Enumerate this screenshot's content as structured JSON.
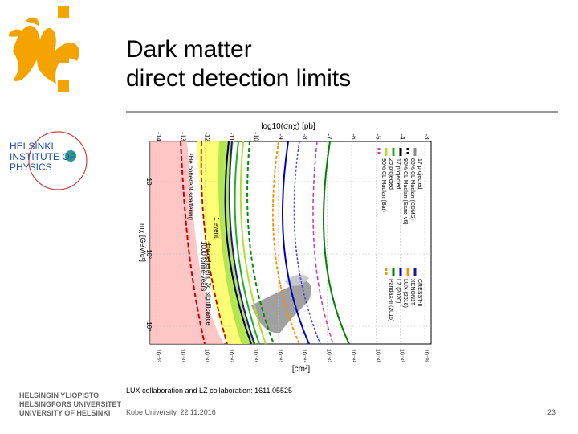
{
  "slide": {
    "title_line1": "Dark matter",
    "title_line2": "direct detection limits",
    "citation": "LUX collaboration and LZ collaboration: 1611.05525",
    "footer_left": "Kobe University, 22.11.2016",
    "page_number": "23"
  },
  "logos": {
    "flame_color": "#f5a300",
    "physics_line1": "HELSINKI",
    "physics_line2": "INSTITUTE OF",
    "physics_line3": "PHYSICS",
    "physics_color": "#1f4e9c",
    "uni_name1": "HELSINGIN YLIOPISTO",
    "uni_name2": "HELSINGFORS UNIVERSITET",
    "uni_name3": "UNIVERSITY OF HELSINKI"
  },
  "chart_data": {
    "type": "line",
    "orientation": "rotated-90-clockwise",
    "top_axis_label": "log10(σnχ) [pb]",
    "top_ticks": [
      "-14",
      "-13",
      "-12",
      "-11",
      "-10",
      "-9",
      "-8",
      "-7",
      "-6",
      "-5",
      "-4",
      "-3"
    ],
    "bottom_axis_label": "[cm²]",
    "bottom_ticks": [
      "10⁻⁵⁰",
      "10⁻⁴⁹",
      "10⁻⁴⁸",
      "10⁻⁴⁷",
      "10⁻⁴⁶",
      "10⁻⁴⁵",
      "10⁻⁴⁴",
      "10⁻⁴³",
      "10⁻⁴²",
      "10⁻⁴¹",
      "10⁻⁴⁰",
      "10⁻³⁹"
    ],
    "mass_axis_label": "mχ [GeV/c²]",
    "mass_ticks": [
      "10",
      "10²",
      "10³"
    ],
    "annotations": [
      "⁴He coherent scattering",
      "1 event",
      "⁴He coherent, 3σ significance",
      "1000 tonne-years"
    ],
    "legend": [
      {
        "label": "17 projected",
        "color": "#8a8a8a",
        "style": "solid"
      },
      {
        "label": "80% CL Madlan (CDMS)",
        "color": "#000000",
        "style": "dashed"
      },
      {
        "label": "90% CL Madlan (Exasi v6)",
        "color": "#000000",
        "style": "solid"
      },
      {
        "label": "17 projected",
        "color": "#22b022",
        "style": "solid"
      },
      {
        "label": "2σ projected",
        "color": "#b0e02a",
        "style": "solid"
      },
      {
        "label": "90% CL Madlan (Bat)",
        "color": "#c040c0",
        "style": "dashed"
      },
      {
        "label": "CRESST-II",
        "color": "#1a1a8c",
        "style": "solid"
      },
      {
        "label": "XENON1T",
        "color": "#ff8c00",
        "style": "solid"
      },
      {
        "label": "LUX (2016)",
        "color": "#0000cc",
        "style": "solid"
      },
      {
        "label": "LZ (2020)",
        "color": "#008000",
        "style": "solid"
      },
      {
        "label": "PandaX-II (2016)",
        "color": "#e0a000",
        "style": "dashed"
      }
    ],
    "regions": [
      {
        "name": "neutrino-floor",
        "color": "#ffa6a6"
      },
      {
        "name": "discovery-band",
        "color": "#ffff66"
      },
      {
        "name": "signal-region",
        "color": "#a0a0a0"
      }
    ]
  }
}
